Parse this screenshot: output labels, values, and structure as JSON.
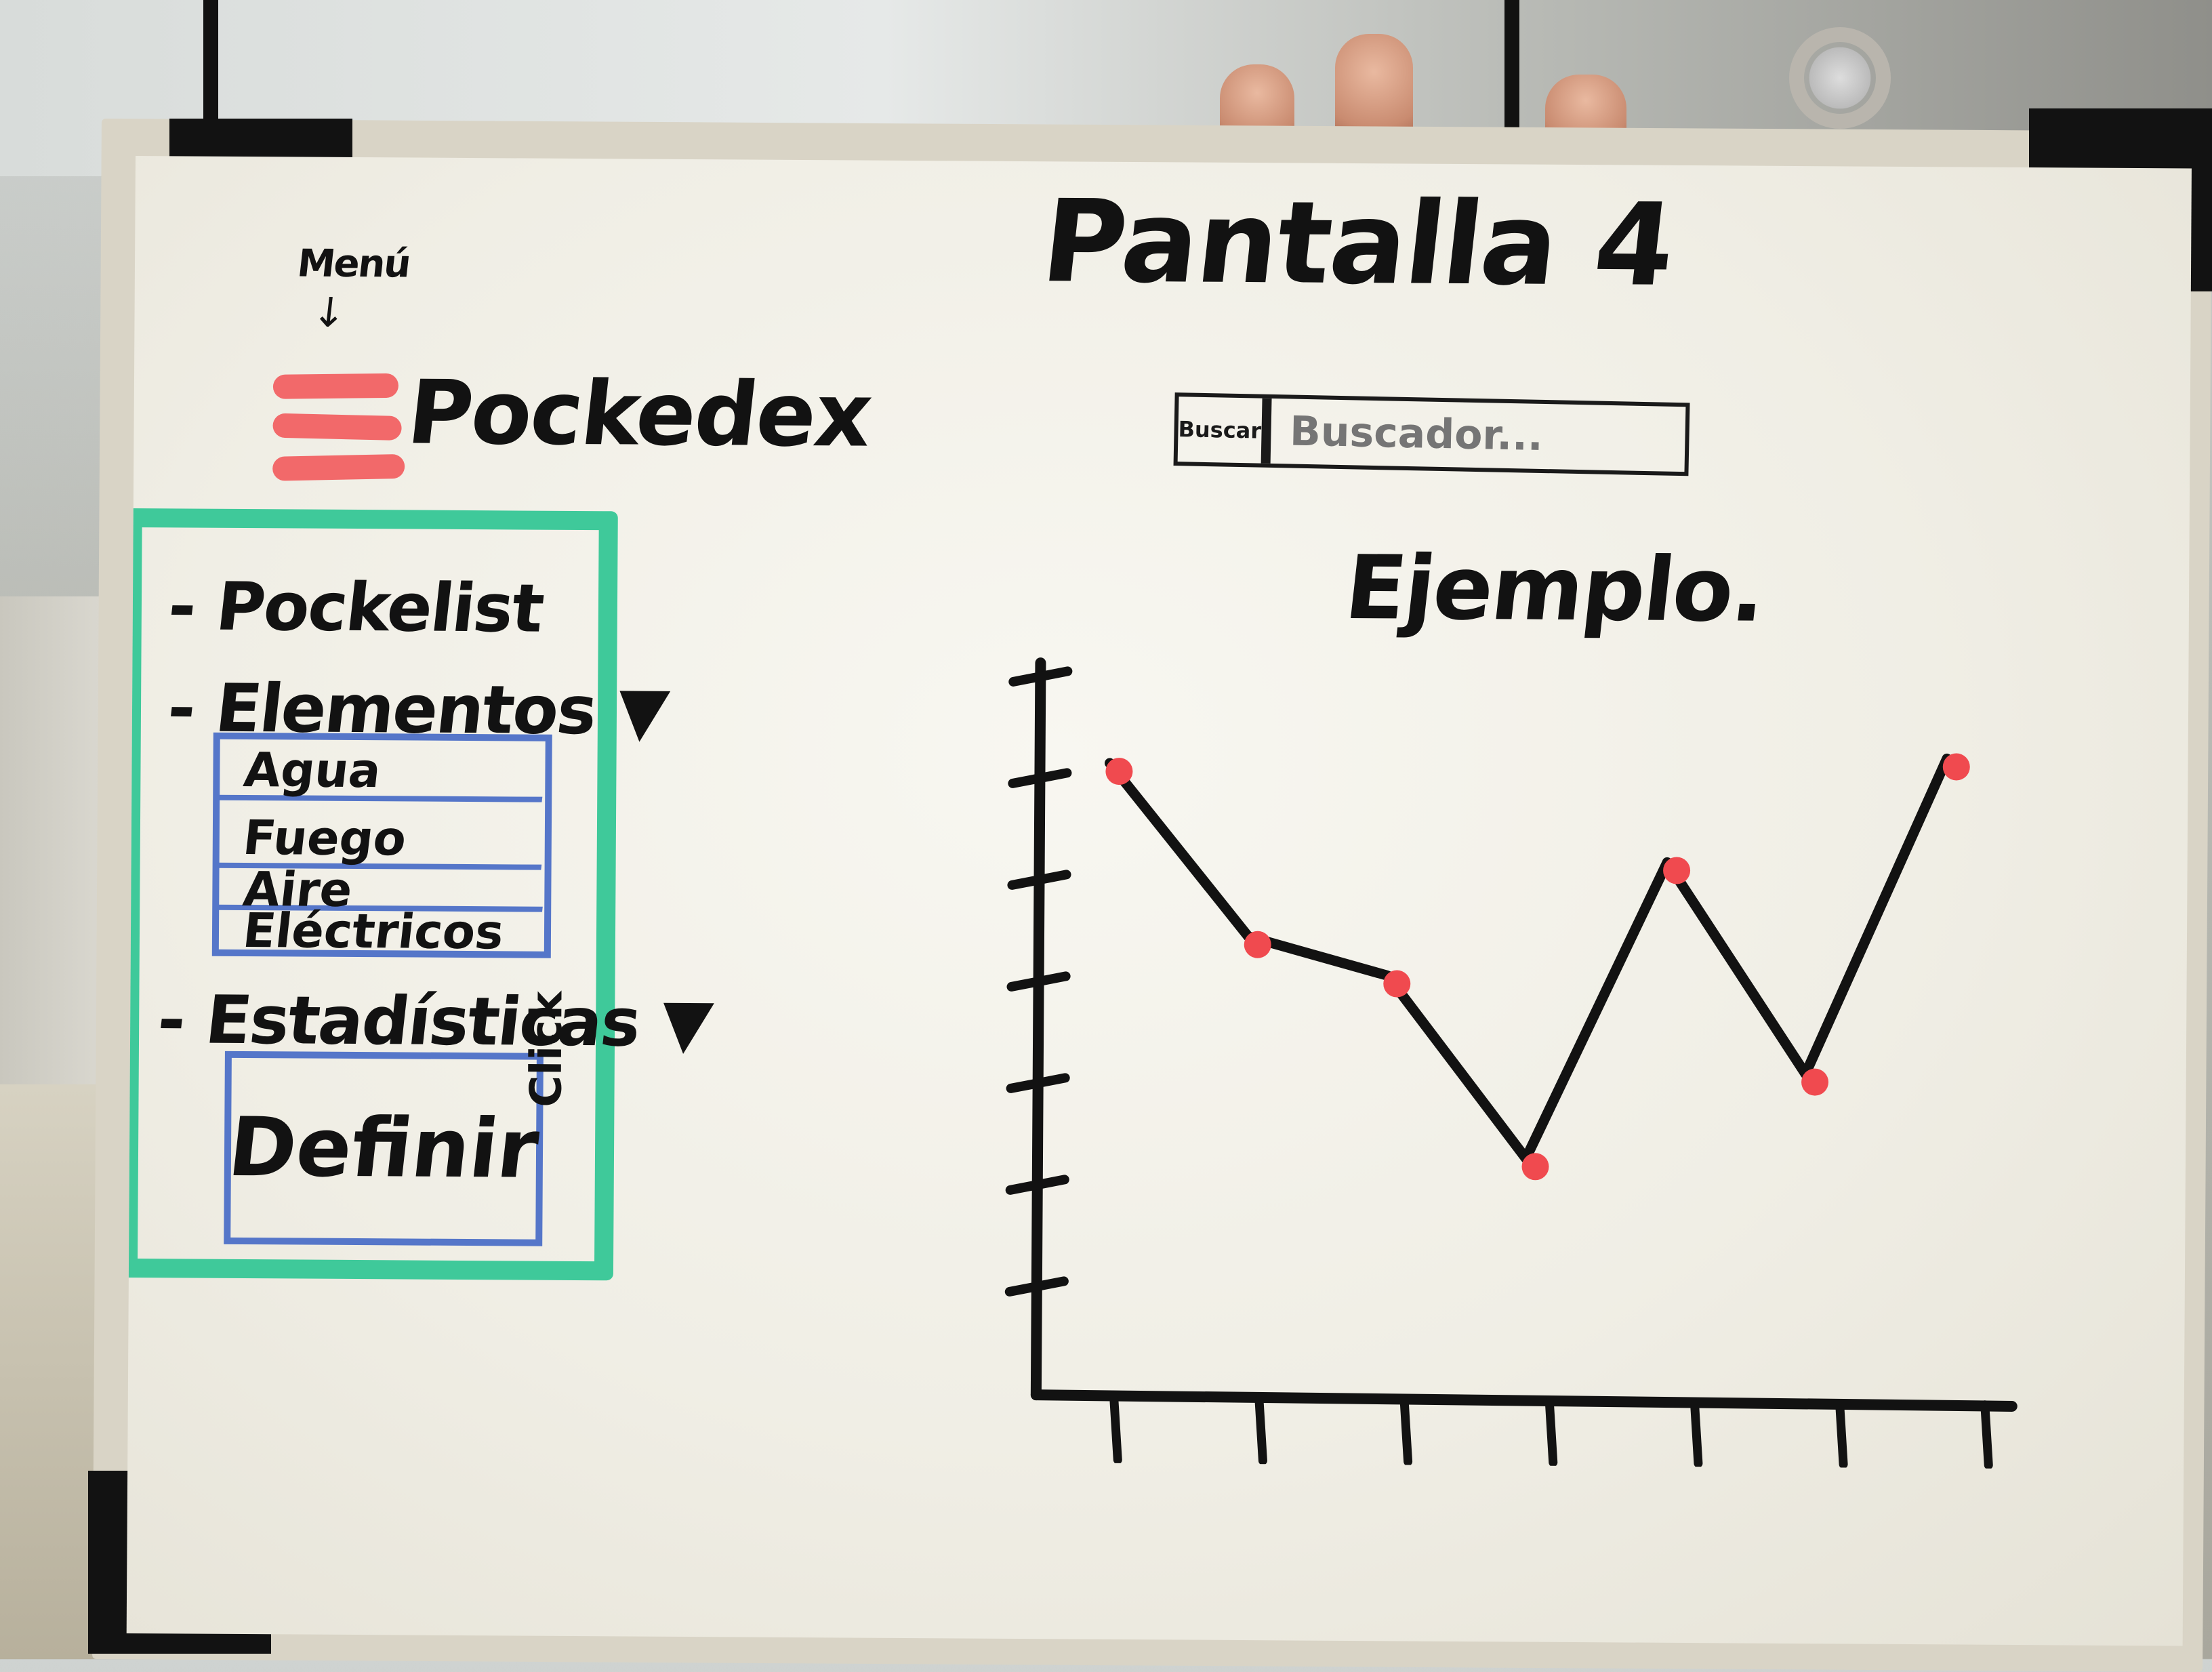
{
  "page": {
    "title": "Pantalla 4"
  },
  "menu": {
    "hint": "Menú",
    "arrow": "↓",
    "icon": "hamburger-icon",
    "color": "#f2696a"
  },
  "app": {
    "title": "Pockedex"
  },
  "search": {
    "button_label": "Buscar",
    "placeholder": "Buscador..."
  },
  "sidebar": {
    "border_color": "#3fc99a",
    "items": [
      {
        "label": "- Pockelist"
      },
      {
        "label": "- Elementos ▼"
      },
      {
        "label": "- Estadísticas ▼"
      }
    ],
    "elements_submenu": {
      "border_color": "#5576c9",
      "items": [
        "Agua",
        "Fuego",
        "Aire",
        "Eléctricos"
      ]
    },
    "stats_panel": {
      "label": "Definir",
      "note": "Click"
    }
  },
  "chart_data": {
    "type": "line",
    "title": "Ejemplo.",
    "xlabel": "",
    "ylabel": "",
    "x": [
      1,
      2,
      3,
      4,
      5,
      6,
      7
    ],
    "values": [
      6.6,
      4.8,
      4.4,
      2.5,
      5.6,
      3.4,
      6.7
    ],
    "ylim": [
      0,
      7.5
    ],
    "x_ticks": 7,
    "y_ticks": 7,
    "line_color": "#121212",
    "marker_color": "#f04a4f",
    "grid": false
  }
}
